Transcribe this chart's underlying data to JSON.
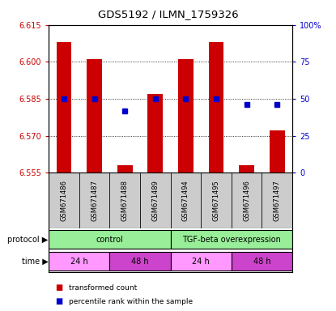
{
  "title": "GDS5192 / ILMN_1759326",
  "samples": [
    "GSM671486",
    "GSM671487",
    "GSM671488",
    "GSM671489",
    "GSM671494",
    "GSM671495",
    "GSM671496",
    "GSM671497"
  ],
  "bar_values": [
    6.608,
    6.601,
    6.558,
    6.587,
    6.601,
    6.608,
    6.558,
    6.572
  ],
  "percentile_values": [
    50,
    50,
    42,
    50,
    50,
    50,
    46,
    46
  ],
  "ymin": 6.555,
  "ymax": 6.615,
  "yticks": [
    6.555,
    6.57,
    6.585,
    6.6,
    6.615
  ],
  "y2ticks": [
    0,
    25,
    50,
    75,
    100
  ],
  "y2labels": [
    "0",
    "25",
    "50",
    "75",
    "100%"
  ],
  "bar_color": "#cc0000",
  "dot_color": "#0000cc",
  "tick_color_left": "#cc0000",
  "tick_color_right": "#0000cc",
  "grid_color": "#000000",
  "bg_color": "#ffffff",
  "sample_bg": "#cccccc",
  "proto_color": "#99ee99",
  "time_color_24": "#ff99ff",
  "time_color_48": "#cc44cc"
}
